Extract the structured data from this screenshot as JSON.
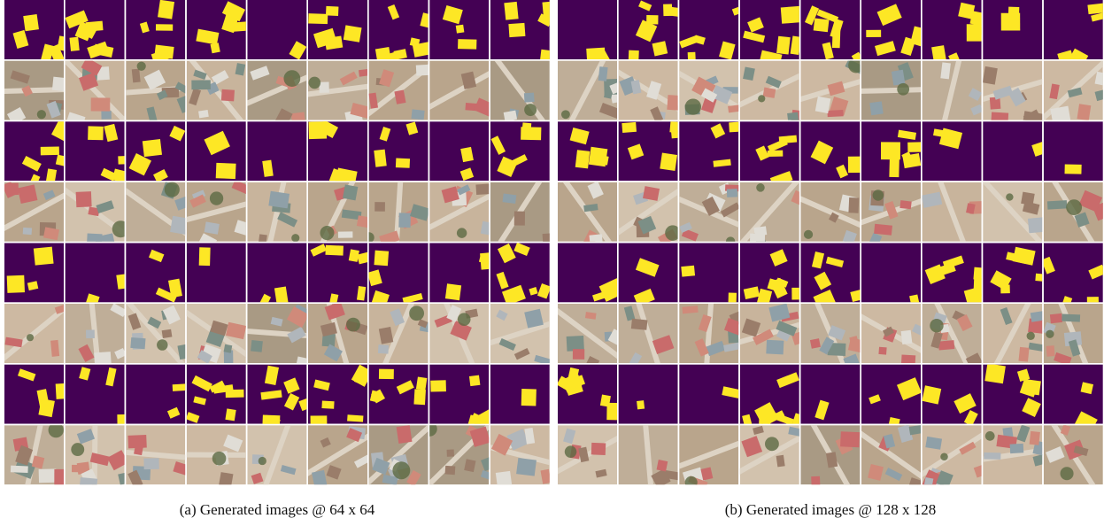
{
  "panels": [
    {
      "caption": "(a) Generated images @ 64 x 64"
    },
    {
      "caption": "(b) Generated images @ 128 x 128"
    }
  ]
}
